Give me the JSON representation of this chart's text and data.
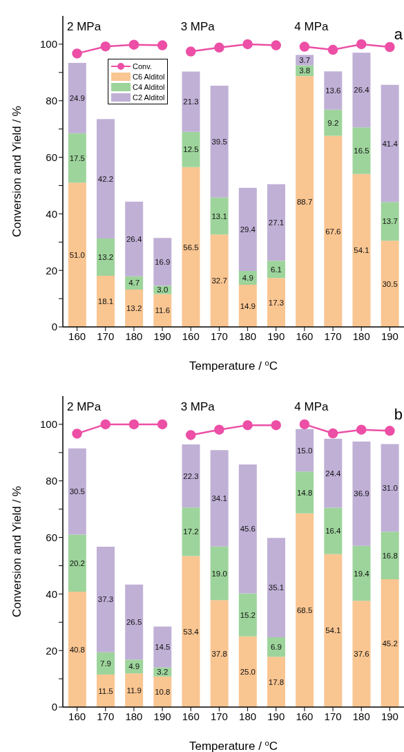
{
  "chart_data": [
    {
      "type": "bar",
      "stacked": true,
      "legend": "top left",
      "marker": "circle",
      "line_style": "solid",
      "ylabel": "Conversion and Yield / %",
      "xlabel": "Temperature / $^{o}$C",
      "annotations": [
        "2 MPa",
        "3 MPa",
        "4 MPa",
        "a"
      ],
      "categories": [
        "160",
        "170",
        "180",
        "190",
        "160",
        "170",
        "180",
        "190",
        "160",
        "170",
        "180",
        "190"
      ],
      "ylim": [
        0,
        110
      ],
      "yticks": [
        0,
        {
          "value": 10,
          "label": null
        },
        20,
        {
          "value": 30,
          "label": null
        },
        40,
        {
          "value": 50,
          "label": null
        },
        60,
        {
          "value": 70,
          "label": null
        },
        80,
        {
          "value": 90,
          "label": null
        },
        100
      ],
      "series": [
        {
          "name": "Conv.",
          "type": "line",
          "color": "#ec4fa5",
          "values": [
            96.7,
            99.2,
            99.8,
            99.6,
            null,
            null,
            null,
            null,
            null,
            null,
            null,
            null
          ]
        },
        {
          "type": "line",
          "color": "#ec4fa5",
          "values": [
            null,
            null,
            null,
            null,
            97.4,
            98.8,
            100,
            99.6,
            null,
            null,
            null,
            null
          ]
        },
        {
          "type": "line",
          "color": "#ec4fa5",
          "values": [
            null,
            null,
            null,
            null,
            null,
            null,
            null,
            null,
            99.1,
            98.0,
            100,
            99.0
          ]
        },
        {
          "name": "C6 Alditol",
          "color": "#f9c591",
          "values": [
            51.0,
            18.1,
            13.2,
            11.6,
            56.5,
            32.7,
            14.9,
            17.3,
            88.7,
            67.6,
            54.1,
            30.5
          ],
          "value_labels": [
            "51.0",
            "18.1",
            "13.2",
            "11.6",
            "56.5",
            "32.7",
            "14.9",
            "17.3",
            "88.7",
            "67.6",
            "54.1",
            "30.5"
          ]
        },
        {
          "name": "C4 Alditol",
          "color": "#9dd49b",
          "values": [
            17.5,
            13.2,
            4.7,
            3.0,
            12.5,
            13.1,
            4.9,
            6.1,
            3.8,
            9.2,
            16.5,
            13.7
          ],
          "value_labels": [
            "17.5",
            "13.2",
            "4.7",
            "3.0",
            "12.5",
            "13.1",
            "4.9",
            "6.1",
            "3.8",
            "9.2",
            "16.5",
            "13.7"
          ]
        },
        {
          "name": "C2 Alditol",
          "color": "#c0b0d6",
          "values": [
            24.9,
            42.2,
            26.4,
            16.9,
            21.3,
            39.5,
            29.4,
            27.1,
            3.7,
            13.6,
            26.4,
            41.4
          ],
          "value_labels": [
            "24.9",
            "42.2",
            "26.4",
            "16.9",
            "21.3",
            "39.5",
            "29.4",
            "27.1",
            "3.7",
            "13.6",
            "26.4",
            "41.4"
          ]
        }
      ]
    },
    {
      "type": "bar",
      "stacked": true,
      "marker": "circle",
      "line_style": "solid",
      "ylabel": "Conversion and Yield / %",
      "xlabel": "Temperature / $^{o}$C",
      "annotations": [
        "2 MPa",
        "3 MPa",
        "4 MPa",
        "b"
      ],
      "categories": [
        "160",
        "170",
        "180",
        "190",
        "160",
        "170",
        "180",
        "190",
        "160",
        "170",
        "180",
        "190"
      ],
      "ylim": [
        0,
        110
      ],
      "yticks": [
        0,
        {
          "value": 10,
          "label": null
        },
        20,
        {
          "value": 30,
          "label": null
        },
        40,
        {
          "value": 50,
          "label": null
        },
        60,
        {
          "value": 70,
          "label": null
        },
        80,
        {
          "value": 90,
          "label": null
        },
        100
      ],
      "series": [
        {
          "type": "line",
          "color": "#ec4fa5",
          "values": [
            96.7,
            100,
            100,
            100,
            null,
            null,
            null,
            null,
            null,
            null,
            null,
            null
          ]
        },
        {
          "type": "line",
          "color": "#ec4fa5",
          "values": [
            null,
            null,
            null,
            null,
            96.2,
            98.1,
            99.7,
            99.7,
            null,
            null,
            null,
            null
          ]
        },
        {
          "type": "line",
          "color": "#ec4fa5",
          "values": [
            null,
            null,
            null,
            null,
            null,
            null,
            null,
            null,
            100,
            96.8,
            98.1,
            97.7
          ]
        },
        {
          "color": "#f9c591",
          "values": [
            40.8,
            11.5,
            11.9,
            10.8,
            53.4,
            37.8,
            25.0,
            17.8,
            68.5,
            54.1,
            37.6,
            45.2
          ],
          "value_labels": [
            "40.8",
            "11.5",
            "11.9",
            "10.8",
            "53.4",
            "37.8",
            "25.0",
            "17.8",
            "68.5",
            "54.1",
            "37.6",
            "45.2"
          ]
        },
        {
          "color": "#9dd49b",
          "values": [
            20.2,
            7.9,
            4.9,
            3.2,
            17.2,
            19.0,
            15.2,
            6.9,
            14.8,
            16.4,
            19.4,
            16.8
          ],
          "value_labels": [
            "20.2",
            "7.9",
            "4.9",
            "3.2",
            "17.2",
            "19.0",
            "15.2",
            "6.9",
            "14.8",
            "16.4",
            "19.4",
            "16.8"
          ]
        },
        {
          "color": "#c0b0d6",
          "values": [
            30.5,
            37.3,
            26.5,
            14.5,
            22.3,
            34.1,
            45.6,
            35.1,
            15.0,
            24.4,
            36.9,
            31.0
          ],
          "value_labels": [
            "30.5",
            "37.3",
            "26.5",
            "14.5",
            "22.3",
            "34.1",
            "45.6",
            "35.1",
            "15.0",
            "24.4",
            "36.9",
            "31.0"
          ]
        }
      ]
    }
  ]
}
